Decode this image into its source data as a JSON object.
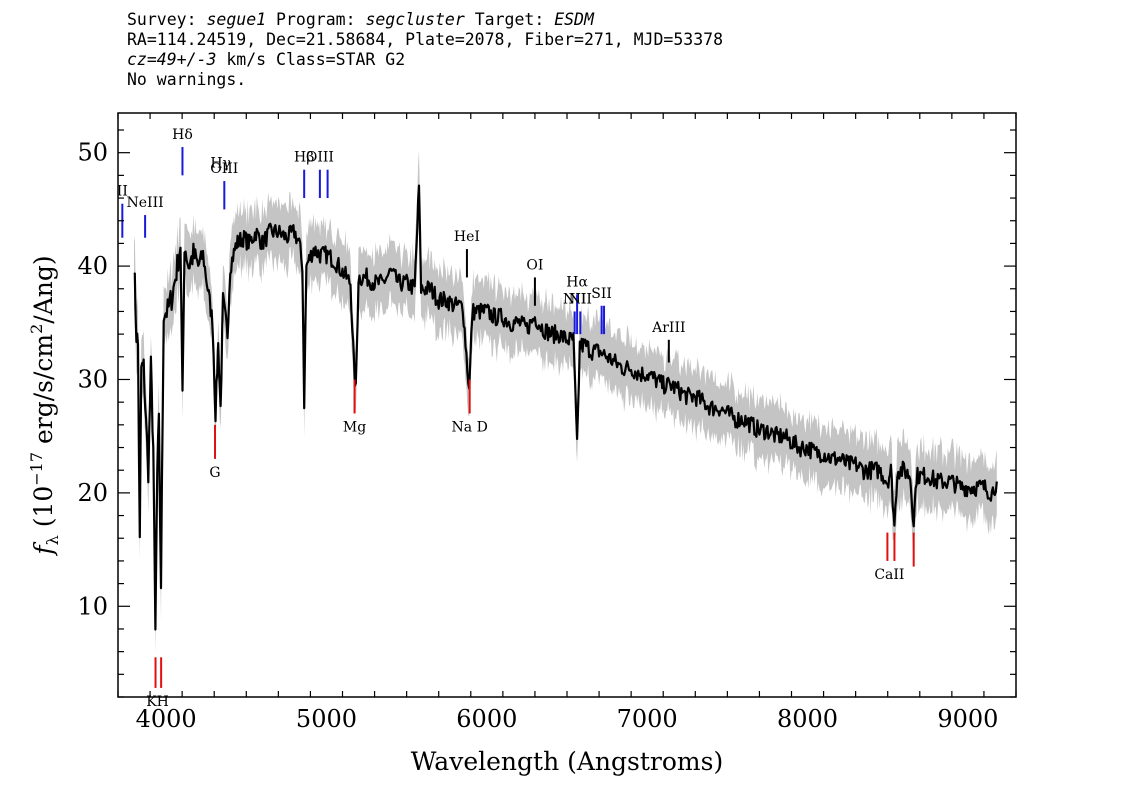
{
  "header": {
    "line1": {
      "survey_label": "Survey: ",
      "survey": "segue1",
      "program_label": " Program: ",
      "program": "segcluster",
      "target_label": " Target: ",
      "target": "ESDM"
    },
    "line2": "RA=114.24519, Dec=21.58684, Plate=2078, Fiber=271, MJD=53378",
    "line3": {
      "cz": "cz=49+/-3",
      "rest": " km/s Class=STAR G2"
    },
    "line4": "No warnings."
  },
  "chart_data": {
    "type": "line",
    "title": "",
    "xlabel": "Wavelength (Angstroms)",
    "ylabel": "f_λ (10^-17 erg/s/cm²/Ang)",
    "ylabel_parts": {
      "f": "f",
      "sub": "λ",
      "pre": " (10",
      "exp1": "−17",
      "mid": " erg/s/cm",
      "exp2": "2",
      "post": "/Ang)"
    },
    "xlim": [
      3700,
      9300
    ],
    "ylim": [
      2,
      53.5
    ],
    "xticks": [
      4000,
      5000,
      6000,
      7000,
      8000,
      9000
    ],
    "yticks": [
      10,
      20,
      30,
      40,
      50
    ],
    "series": [
      {
        "role": "flux",
        "color": "#000000",
        "points": [
          [
            3800,
            40.5
          ],
          [
            3815,
            34
          ],
          [
            3825,
            33
          ],
          [
            3836,
            15.5
          ],
          [
            3845,
            31
          ],
          [
            3860,
            31
          ],
          [
            3875,
            26
          ],
          [
            3889,
            22
          ],
          [
            3905,
            31
          ],
          [
            3920,
            24
          ],
          [
            3933,
            7.5
          ],
          [
            3945,
            22
          ],
          [
            3955,
            26
          ],
          [
            3968,
            12
          ],
          [
            3985,
            36
          ],
          [
            4010,
            36
          ],
          [
            4040,
            37.5
          ],
          [
            4070,
            40
          ],
          [
            4090,
            42
          ],
          [
            4102,
            28
          ],
          [
            4115,
            42
          ],
          [
            4140,
            40
          ],
          [
            4170,
            41
          ],
          [
            4200,
            40
          ],
          [
            4230,
            41
          ],
          [
            4260,
            38
          ],
          [
            4290,
            35
          ],
          [
            4308,
            27
          ],
          [
            4325,
            33
          ],
          [
            4340,
            27.5
          ],
          [
            4355,
            37
          ],
          [
            4383,
            34
          ],
          [
            4400,
            40
          ],
          [
            4440,
            42
          ],
          [
            4480,
            42.5
          ],
          [
            4520,
            42
          ],
          [
            4560,
            43
          ],
          [
            4600,
            42
          ],
          [
            4650,
            43
          ],
          [
            4700,
            43
          ],
          [
            4750,
            42.5
          ],
          [
            4800,
            43
          ],
          [
            4830,
            42
          ],
          [
            4850,
            40
          ],
          [
            4861,
            28
          ],
          [
            4875,
            40
          ],
          [
            4920,
            41.5
          ],
          [
            4960,
            41
          ],
          [
            5000,
            41
          ],
          [
            5050,
            40.5
          ],
          [
            5100,
            39.5
          ],
          [
            5150,
            38.5
          ],
          [
            5172,
            31
          ],
          [
            5183,
            29
          ],
          [
            5200,
            39
          ],
          [
            5250,
            39
          ],
          [
            5300,
            38.5
          ],
          [
            5350,
            38.5
          ],
          [
            5400,
            39.5
          ],
          [
            5450,
            38.5
          ],
          [
            5500,
            38.5
          ],
          [
            5550,
            38
          ],
          [
            5577,
            47
          ],
          [
            5590,
            38
          ],
          [
            5650,
            38
          ],
          [
            5700,
            37
          ],
          [
            5750,
            37
          ],
          [
            5800,
            36.5
          ],
          [
            5850,
            36.5
          ],
          [
            5890,
            29
          ],
          [
            5910,
            36
          ],
          [
            5950,
            36
          ],
          [
            6000,
            36
          ],
          [
            6050,
            35.5
          ],
          [
            6100,
            35.5
          ],
          [
            6150,
            35
          ],
          [
            6200,
            35
          ],
          [
            6250,
            34.5
          ],
          [
            6300,
            35.5
          ],
          [
            6350,
            34.5
          ],
          [
            6400,
            34
          ],
          [
            6450,
            34
          ],
          [
            6500,
            33.5
          ],
          [
            6540,
            33.5
          ],
          [
            6563,
            24
          ],
          [
            6580,
            33
          ],
          [
            6620,
            33
          ],
          [
            6650,
            32.5
          ],
          [
            6700,
            32.5
          ],
          [
            6750,
            32
          ],
          [
            6800,
            31.5
          ],
          [
            6850,
            31
          ],
          [
            6900,
            31
          ],
          [
            6950,
            30.5
          ],
          [
            7000,
            30.5
          ],
          [
            7050,
            30
          ],
          [
            7100,
            29.5
          ],
          [
            7150,
            29.5
          ],
          [
            7200,
            29
          ],
          [
            7250,
            28.5
          ],
          [
            7300,
            28.5
          ],
          [
            7350,
            28
          ],
          [
            7400,
            27.5
          ],
          [
            7450,
            27.5
          ],
          [
            7500,
            27
          ],
          [
            7550,
            26.5
          ],
          [
            7600,
            26.5
          ],
          [
            7650,
            26
          ],
          [
            7700,
            25.5
          ],
          [
            7750,
            25.5
          ],
          [
            7800,
            25
          ],
          [
            7850,
            25
          ],
          [
            7900,
            24.5
          ],
          [
            7950,
            24
          ],
          [
            8000,
            24
          ],
          [
            8050,
            23.5
          ],
          [
            8100,
            23.5
          ],
          [
            8150,
            23
          ],
          [
            8200,
            23
          ],
          [
            8250,
            22.5
          ],
          [
            8300,
            22.5
          ],
          [
            8350,
            22
          ],
          [
            8400,
            22
          ],
          [
            8450,
            22
          ],
          [
            8498,
            21
          ],
          [
            8520,
            22
          ],
          [
            8542,
            17
          ],
          [
            8560,
            22
          ],
          [
            8600,
            22
          ],
          [
            8640,
            21.5
          ],
          [
            8662,
            17.5
          ],
          [
            8680,
            21.5
          ],
          [
            8720,
            21.5
          ],
          [
            8760,
            21.5
          ],
          [
            8800,
            21
          ],
          [
            8850,
            21
          ],
          [
            8900,
            21
          ],
          [
            8950,
            20.5
          ],
          [
            9000,
            20.5
          ],
          [
            9050,
            20.5
          ],
          [
            9100,
            20.5
          ],
          [
            9150,
            20
          ],
          [
            9180,
            21
          ]
        ]
      }
    ],
    "error_band": {
      "color": "#c4c4c4",
      "half_width": 1.8
    },
    "emission_lines": [
      {
        "label": "II",
        "wl": 3727,
        "ytop": 45.5,
        "ybot": 42.5,
        "color": "#1a1adb"
      },
      {
        "label": "NeIII",
        "wl": 3869,
        "ytop": 44.5,
        "ybot": 42.5,
        "color": "#1a1adb"
      },
      {
        "label": "Hδ",
        "wl": 4102,
        "ytop": 50.5,
        "ybot": 48,
        "color": "#1a1adb"
      },
      {
        "label": "Hγ",
        "wl": 4340,
        "ytop": 48,
        "ybot": 48,
        "color": "#1a1adb"
      },
      {
        "label": "OIII",
        "wl": 4363,
        "ytop": 47.5,
        "ybot": 45,
        "color": "#1a1adb"
      },
      {
        "label": "Hβ",
        "wl": 4861,
        "ytop": 48.5,
        "ybot": 46,
        "color": "#1a1adb"
      },
      {
        "label": "OIII",
        "wl": 4959,
        "ytop": 48.5,
        "ybot": 46,
        "color": "#1a1adb"
      },
      {
        "label": "",
        "wl": 5007,
        "ytop": 48.5,
        "ybot": 46,
        "color": "#1a1adb"
      },
      {
        "label": "HeI",
        "wl": 5876,
        "ytop": 41.5,
        "ybot": 39,
        "color": "#000000"
      },
      {
        "label": "OI",
        "wl": 6300,
        "ytop": 39,
        "ybot": 36.5,
        "color": "#000000"
      },
      {
        "label": "NII",
        "wl": 6548,
        "ytop": 36,
        "ybot": 34,
        "color": "#1a1adb"
      },
      {
        "label": "Hα",
        "wl": 6563,
        "ytop": 37.5,
        "ybot": 34,
        "color": "#1a1adb"
      },
      {
        "label": "NII",
        "wl": 6583,
        "ytop": 36,
        "ybot": 34,
        "color": "#1a1adb"
      },
      {
        "label": "SII",
        "wl": 6716,
        "ytop": 36.5,
        "ybot": 34,
        "color": "#1a1adb"
      },
      {
        "label": "",
        "wl": 6731,
        "ytop": 36.5,
        "ybot": 34,
        "color": "#1a1adb"
      },
      {
        "label": "ArIII",
        "wl": 7135,
        "ytop": 33.5,
        "ybot": 31.5,
        "color": "#000000"
      }
    ],
    "absorption_lines": [
      {
        "label": "KH",
        "wl": 3934,
        "ytop": 5.5,
        "ybot": 2.8,
        "color": "#e01010"
      },
      {
        "label": "",
        "wl": 3969,
        "ytop": 5.5,
        "ybot": 2.8,
        "color": "#e01010"
      },
      {
        "label": "G",
        "wl": 4305,
        "ytop": 26,
        "ybot": 23,
        "color": "#e01010"
      },
      {
        "label": "Mg",
        "wl": 5175,
        "ytop": 30,
        "ybot": 27,
        "color": "#e01010"
      },
      {
        "label": "Na D",
        "wl": 5893,
        "ytop": 30,
        "ybot": 27,
        "color": "#e01010"
      },
      {
        "label": "CaII",
        "wl": 8498,
        "ytop": 16.5,
        "ybot": 14,
        "color": "#e01010"
      },
      {
        "label": "",
        "wl": 8542,
        "ytop": 16.5,
        "ybot": 14,
        "color": "#e01010"
      },
      {
        "label": "",
        "wl": 8662,
        "ytop": 16.5,
        "ybot": 13.5,
        "color": "#e01010"
      }
    ]
  }
}
